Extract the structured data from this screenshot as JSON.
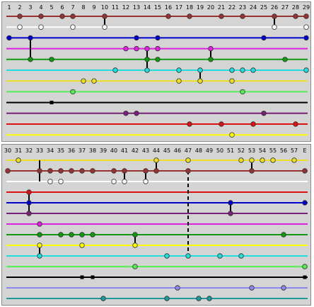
{
  "panels": [
    {
      "id": "top",
      "column_labels": [
        "1",
        "2",
        "3",
        "4",
        "5",
        "6",
        "7",
        "8",
        "9",
        "10",
        "11",
        "12",
        "13",
        "14",
        "15",
        "16",
        "17",
        "18",
        "19",
        "20",
        "21",
        "22",
        "23",
        "24",
        "25",
        "26",
        "27",
        "28",
        "29"
      ],
      "lines": [
        {
          "color": "#993333",
          "nodes": [
            {
              "c": 2,
              "fill": "#993333"
            },
            {
              "c": 4,
              "fill": "#993333"
            },
            {
              "c": 6,
              "fill": "#993333"
            },
            {
              "c": 7,
              "fill": "#993333"
            },
            {
              "c": 10,
              "fill": "#993333"
            },
            {
              "c": 16,
              "fill": "#993333"
            },
            {
              "c": 18,
              "fill": "#993333"
            },
            {
              "c": 21,
              "fill": "#993333"
            },
            {
              "c": 23,
              "fill": "#993333"
            },
            {
              "c": 26,
              "fill": "#993333"
            },
            {
              "c": 28,
              "fill": "#993333"
            },
            {
              "c": 29,
              "fill": "#993333"
            }
          ]
        },
        {
          "color": "#ffffff",
          "nodes": [
            {
              "c": 2,
              "fill": "#ffffff"
            },
            {
              "c": 4,
              "fill": "#ffffff"
            },
            {
              "c": 7,
              "fill": "#ffffff"
            },
            {
              "c": 10,
              "fill": "#ffffff"
            },
            {
              "c": 26,
              "fill": "#ffffff"
            },
            {
              "c": 29,
              "fill": "#ffffff"
            }
          ]
        },
        {
          "color": "#0000cc",
          "nodes": [
            {
              "c": 1,
              "fill": "#0000cc"
            },
            {
              "c": 3,
              "fill": "#0000cc"
            },
            {
              "c": 13,
              "fill": "#0000cc"
            },
            {
              "c": 15,
              "fill": "#0000cc"
            },
            {
              "c": 25,
              "fill": "#0000cc"
            },
            {
              "c": 29,
              "fill": "#0000cc"
            }
          ]
        },
        {
          "color": "#dd22dd",
          "nodes": [
            {
              "c": 12,
              "fill": "#dd22dd"
            },
            {
              "c": 13,
              "fill": "#dd22dd"
            },
            {
              "c": 14,
              "fill": "#dd22dd"
            },
            {
              "c": 15,
              "fill": "#dd22dd"
            },
            {
              "c": 20,
              "fill": "#dd22dd"
            }
          ]
        },
        {
          "color": "#119911",
          "nodes": [
            {
              "c": 3,
              "fill": "#119911"
            },
            {
              "c": 5,
              "fill": "#119911"
            },
            {
              "c": 14,
              "fill": "#119911"
            },
            {
              "c": 15,
              "fill": "#119911"
            },
            {
              "c": 20,
              "fill": "#119911"
            },
            {
              "c": 27,
              "fill": "#119911"
            }
          ]
        },
        {
          "color": "#22dddd",
          "nodes": [
            {
              "c": 11,
              "fill": "#22dddd"
            },
            {
              "c": 14,
              "fill": "#22dddd"
            },
            {
              "c": 17,
              "fill": "#22dddd"
            },
            {
              "c": 19,
              "fill": "#22dddd"
            },
            {
              "c": 22,
              "fill": "#22dddd"
            },
            {
              "c": 23,
              "fill": "#22dddd"
            },
            {
              "c": 24,
              "fill": "#22dddd"
            },
            {
              "c": 29,
              "fill": "#22dddd"
            }
          ]
        },
        {
          "color": "#eedd22",
          "nodes": [
            {
              "c": 8,
              "fill": "#eedd22"
            },
            {
              "c": 9,
              "fill": "#eedd22"
            },
            {
              "c": 17,
              "fill": "#eedd22"
            },
            {
              "c": 19,
              "fill": "#eedd22"
            },
            {
              "c": 22,
              "fill": "#eedd22"
            }
          ]
        },
        {
          "color": "#55ee55",
          "nodes": [
            {
              "c": 7,
              "fill": "#55ee55"
            },
            {
              "c": 23,
              "fill": "#55ee55"
            }
          ]
        },
        {
          "color": "#000000",
          "nodes": [
            {
              "c": 5,
              "fill": "#000000",
              "square": true
            }
          ]
        },
        {
          "color": "#772277",
          "nodes": [
            {
              "c": 12,
              "fill": "#772277"
            },
            {
              "c": 13,
              "fill": "#772277"
            },
            {
              "c": 25,
              "fill": "#772277"
            }
          ]
        },
        {
          "color": "#dd1111",
          "nodes": [
            {
              "c": 18,
              "fill": "#dd1111"
            },
            {
              "c": 21,
              "fill": "#dd1111"
            },
            {
              "c": 24,
              "fill": "#dd1111"
            },
            {
              "c": 28,
              "fill": "#dd1111"
            }
          ]
        },
        {
          "color": "#ffff00",
          "nodes": [
            {
              "c": 22,
              "fill": "#ffff00"
            }
          ]
        }
      ],
      "links": [
        {
          "c": 3,
          "from": 2,
          "to": 4,
          "dashed": false
        },
        {
          "c": 10,
          "from": 0,
          "to": 1,
          "dashed": false
        },
        {
          "c": 26,
          "from": 0,
          "to": 1,
          "dashed": false
        },
        {
          "c": 14,
          "from": 3,
          "to": 5,
          "dashed": false
        },
        {
          "c": 20,
          "from": 3,
          "to": 4,
          "dashed": false
        },
        {
          "c": 19,
          "from": 5,
          "to": 6,
          "dashed": false
        }
      ]
    },
    {
      "id": "bottom",
      "column_labels": [
        "30",
        "31",
        "32",
        "33",
        "34",
        "35",
        "36",
        "37",
        "38",
        "39",
        "40",
        "41",
        "42",
        "43",
        "44",
        "45",
        "46",
        "47",
        "48",
        "49",
        "50",
        "51",
        "52",
        "53",
        "54",
        "55",
        "56",
        "57",
        "E"
      ],
      "lines": [
        {
          "color": "#eedd22",
          "nodes": [
            {
              "c": 2,
              "fill": "#eedd22"
            },
            {
              "c": 15,
              "fill": "#eedd22"
            },
            {
              "c": 18,
              "fill": "#eedd22"
            },
            {
              "c": 23,
              "fill": "#eedd22"
            },
            {
              "c": 24,
              "fill": "#eedd22"
            },
            {
              "c": 25,
              "fill": "#eedd22"
            },
            {
              "c": 26,
              "fill": "#eedd22"
            },
            {
              "c": 28,
              "fill": "#eedd22"
            }
          ]
        },
        {
          "color": "#993333",
          "nodes": [
            {
              "c": 1,
              "fill": "#993333"
            },
            {
              "c": 4,
              "fill": "#993333"
            },
            {
              "c": 5,
              "fill": "#993333"
            },
            {
              "c": 6,
              "fill": "#993333"
            },
            {
              "c": 7,
              "fill": "#993333"
            },
            {
              "c": 8,
              "fill": "#993333"
            },
            {
              "c": 9,
              "fill": "#993333"
            },
            {
              "c": 11,
              "fill": "#993333"
            },
            {
              "c": 12,
              "fill": "#993333"
            },
            {
              "c": 14,
              "fill": "#993333"
            },
            {
              "c": 15,
              "fill": "#993333"
            },
            {
              "c": 18,
              "fill": "#993333"
            },
            {
              "c": 24,
              "fill": "#993333"
            },
            {
              "c": 29,
              "fill": "#993333"
            }
          ]
        },
        {
          "color": "#ffffff",
          "nodes": [
            {
              "c": 5,
              "fill": "#ffffff"
            },
            {
              "c": 6,
              "fill": "#ffffff"
            },
            {
              "c": 11,
              "fill": "#ffffff"
            },
            {
              "c": 12,
              "fill": "#ffffff"
            },
            {
              "c": 14,
              "fill": "#ffffff"
            }
          ]
        },
        {
          "color": "#dd1111",
          "nodes": [
            {
              "c": 3,
              "fill": "#dd1111"
            }
          ]
        },
        {
          "color": "#0000cc",
          "nodes": [
            {
              "c": 3,
              "fill": "#0000cc"
            },
            {
              "c": 22,
              "fill": "#0000cc"
            },
            {
              "c": 29,
              "fill": "#0000cc"
            }
          ]
        },
        {
          "color": "#772277",
          "nodes": [
            {
              "c": 3,
              "fill": "#772277"
            },
            {
              "c": 22,
              "fill": "#772277"
            }
          ]
        },
        {
          "color": "#dd22dd",
          "nodes": [
            {
              "c": 4,
              "fill": "#dd22dd"
            }
          ]
        },
        {
          "color": "#119911",
          "nodes": [
            {
              "c": 4,
              "fill": "#119911"
            },
            {
              "c": 6,
              "fill": "#119911"
            },
            {
              "c": 7,
              "fill": "#119911"
            },
            {
              "c": 8,
              "fill": "#119911"
            },
            {
              "c": 9,
              "fill": "#119911"
            },
            {
              "c": 13,
              "fill": "#119911"
            },
            {
              "c": 27,
              "fill": "#119911"
            }
          ]
        },
        {
          "color": "#ffff00",
          "nodes": [
            {
              "c": 4,
              "fill": "#ffff00"
            },
            {
              "c": 8,
              "fill": "#ffff00"
            },
            {
              "c": 13,
              "fill": "#ffff00"
            }
          ]
        },
        {
          "color": "#22dddd",
          "nodes": [
            {
              "c": 4,
              "fill": "#22dddd"
            },
            {
              "c": 16,
              "fill": "#22dddd"
            },
            {
              "c": 18,
              "fill": "#22dddd"
            },
            {
              "c": 21,
              "fill": "#22dddd"
            },
            {
              "c": 23,
              "fill": "#22dddd"
            }
          ]
        },
        {
          "color": "#55ee55",
          "nodes": [
            {
              "c": 13,
              "fill": "#55ee55"
            },
            {
              "c": 29,
              "fill": "#55ee55"
            }
          ]
        },
        {
          "color": "#000000",
          "nodes": [
            {
              "c": 8,
              "fill": "#000000",
              "square": true
            },
            {
              "c": 9,
              "fill": "#000000",
              "square": true
            },
            {
              "c": 29,
              "fill": "#000000",
              "square": true
            }
          ]
        },
        {
          "color": "#8888ee",
          "nodes": [
            {
              "c": 17,
              "fill": "#8888ee"
            },
            {
              "c": 24,
              "fill": "#8888ee"
            },
            {
              "c": 27,
              "fill": "#8888ee"
            }
          ]
        },
        {
          "color": "#229999",
          "nodes": [
            {
              "c": 10,
              "fill": "#229999"
            },
            {
              "c": 16,
              "fill": "#229999"
            },
            {
              "c": 19,
              "fill": "#229999"
            },
            {
              "c": 20,
              "fill": "#229999"
            }
          ]
        }
      ],
      "links": [
        {
          "c": 4,
          "from": 0,
          "to": 2,
          "dashed": false
        },
        {
          "c": 12,
          "from": 1,
          "to": 2,
          "dashed": false
        },
        {
          "c": 14,
          "from": 1,
          "to": 2,
          "dashed": false
        },
        {
          "c": 15,
          "from": 0,
          "to": 1,
          "dashed": false
        },
        {
          "c": 24,
          "from": 0,
          "to": 1,
          "dashed": false
        },
        {
          "c": 3,
          "from": 3,
          "to": 5,
          "dashed": false
        },
        {
          "c": 22,
          "from": 4,
          "to": 5,
          "dashed": false
        },
        {
          "c": 13,
          "from": 7,
          "to": 8,
          "dashed": false
        },
        {
          "c": 4,
          "from": 8,
          "to": 9,
          "dashed": false
        },
        {
          "c": 18,
          "from": 1,
          "to": 9,
          "dashed": true
        }
      ]
    }
  ]
}
